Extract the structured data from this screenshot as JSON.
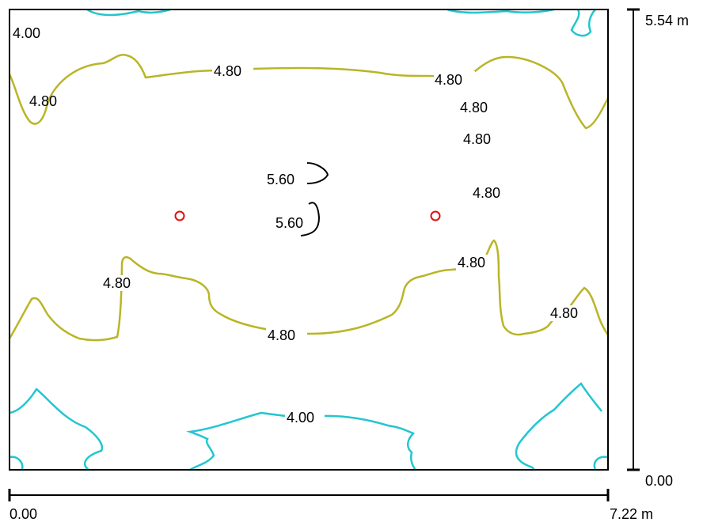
{
  "room": {
    "width_label": "7.22 m",
    "height_label": "5.54 m",
    "x_origin_label": "0.00",
    "y_origin_label": "0.00"
  },
  "colors": {
    "level_4_00": "#23c6cf",
    "level_4_80": "#b9b527",
    "level_5_60": "#000000",
    "luminaire": "#e01010",
    "frame": "#000000"
  },
  "contour_labels": [
    {
      "id": "c400-topleft",
      "text": "4.00"
    },
    {
      "id": "c480-top-mid",
      "text": "4.80"
    },
    {
      "id": "c480-left",
      "text": "4.80"
    },
    {
      "id": "c480-top-right",
      "text": "4.80"
    },
    {
      "id": "c480-right-a",
      "text": "4.80"
    },
    {
      "id": "c480-right-b",
      "text": "4.80"
    },
    {
      "id": "c480-right-c",
      "text": "4.80"
    },
    {
      "id": "c560-a",
      "text": "5.60"
    },
    {
      "id": "c560-b",
      "text": "5.60"
    },
    {
      "id": "c480-lower-right-mid",
      "text": "4.80"
    },
    {
      "id": "c480-lower-left",
      "text": "4.80"
    },
    {
      "id": "c480-lower-mid",
      "text": "4.80"
    },
    {
      "id": "c480-lower-right",
      "text": "4.80"
    },
    {
      "id": "c400-bottom-mid",
      "text": "4.00"
    }
  ],
  "luminaires": [
    {
      "id": "luminaire-left",
      "symbol": "circle"
    },
    {
      "id": "luminaire-right",
      "symbol": "circle"
    }
  ]
}
